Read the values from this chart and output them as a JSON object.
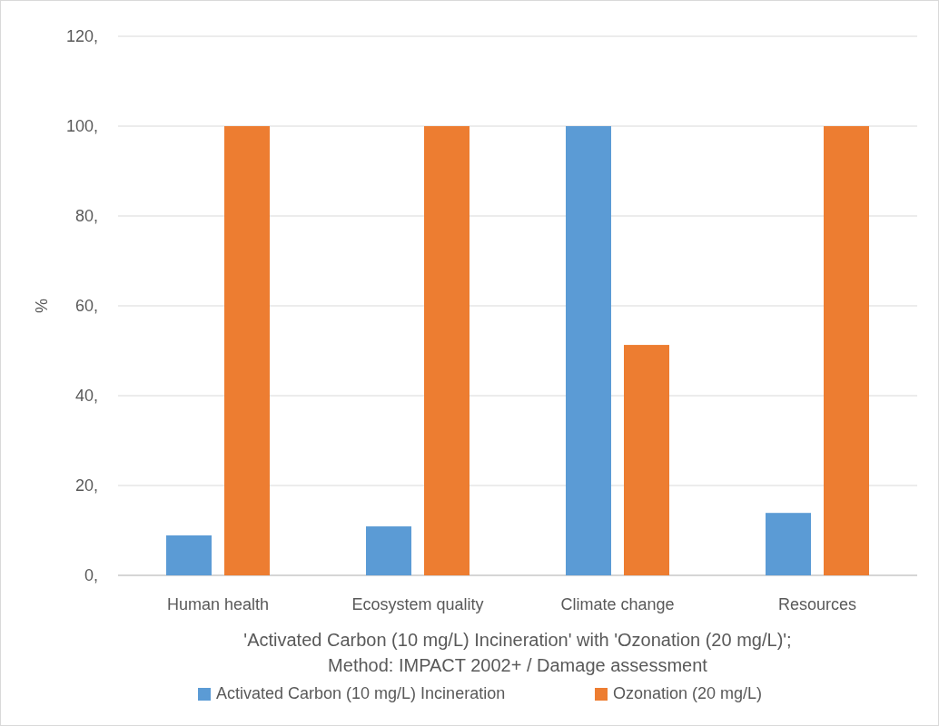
{
  "chart_data": {
    "type": "bar",
    "title": "'Activated Carbon (10 mg/L) Incineration' with 'Ozonation (20 mg/L)'; Method: IMPACT 2002+ / Damage assessment",
    "ylabel": "%",
    "categories": [
      "Human health",
      "Ecosystem quality",
      "Climate change",
      "Resources"
    ],
    "series": [
      {
        "name": "Activated Carbon (10 mg/L) Incineration",
        "color": "#5b9bd5",
        "values": [
          8.9,
          10.9,
          100,
          13.9
        ]
      },
      {
        "name": "Ozonation (20 mg/L)",
        "color": "#ed7d31",
        "values": [
          100,
          100,
          51.3,
          100
        ]
      }
    ],
    "ylim": [
      0,
      120
    ],
    "yticks": [
      {
        "value": 0,
        "label": "0,"
      },
      {
        "value": 20,
        "label": "20,"
      },
      {
        "value": 40,
        "label": "40,"
      },
      {
        "value": 60,
        "label": "60,"
      },
      {
        "value": 80,
        "label": "80,"
      },
      {
        "value": 100,
        "label": "100,"
      },
      {
        "value": 120,
        "label": "120,"
      }
    ],
    "grid": "y",
    "legend": "bottom"
  }
}
